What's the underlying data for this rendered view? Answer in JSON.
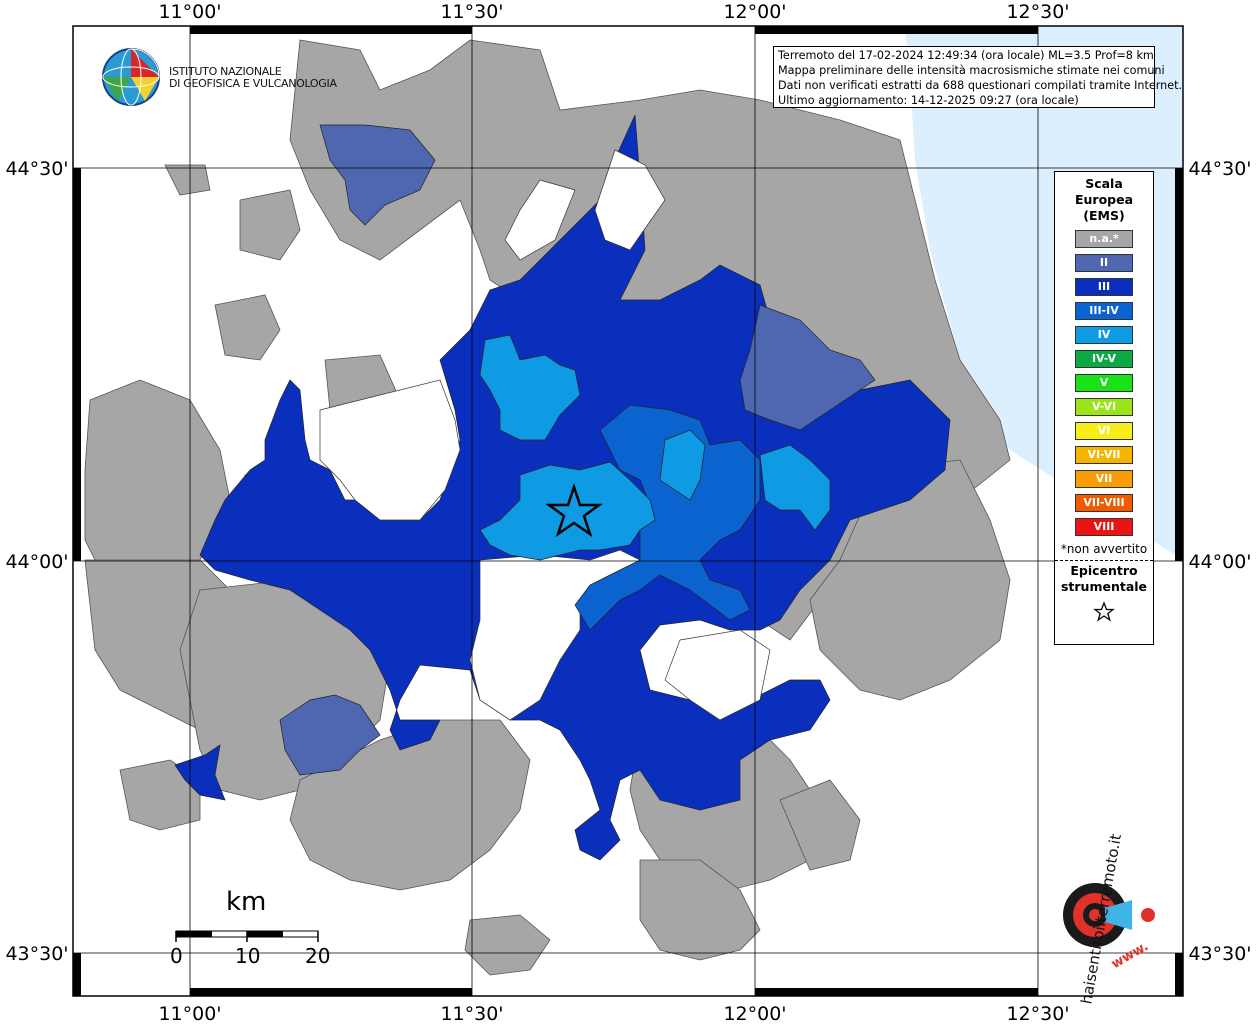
{
  "info": {
    "line1": "Terremoto del 17-02-2024 12:49:34 (ora locale) ML=3.5 Prof=8 km",
    "line2": "Mappa preliminare delle intensità macrosismiche stimate nei comuni",
    "line3": "Dati non verificati estratti da 688 questionari compilati tramite Internet.",
    "line4": "Ultimo aggiornamento: 14-12-2025 09:27 (ora locale)"
  },
  "legend": {
    "title_line1": "Scala",
    "title_line2": "Europea",
    "title_line3": "(EMS)",
    "classes": [
      {
        "label": "n.a.*",
        "color": "#a6a6a6"
      },
      {
        "label": "II",
        "color": "#4f67b0"
      },
      {
        "label": "III",
        "color": "#0b2fbd"
      },
      {
        "label": "III-IV",
        "color": "#0b63cf"
      },
      {
        "label": "IV",
        "color": "#0f9ae4"
      },
      {
        "label": "IV-V",
        "color": "#0aa944"
      },
      {
        "label": "V",
        "color": "#19e219"
      },
      {
        "label": "V-VI",
        "color": "#9be417"
      },
      {
        "label": "VI",
        "color": "#f6ee18"
      },
      {
        "label": "VI-VII",
        "color": "#f4b400"
      },
      {
        "label": "VII",
        "color": "#f79d06"
      },
      {
        "label": "VII-VIII",
        "color": "#f25a00"
      },
      {
        "label": "VIII",
        "color": "#ee1313"
      }
    ],
    "note": "*non avvertito",
    "epicenter_line1": "Epicentro",
    "epicenter_line2": "strumentale",
    "epicenter_icon": "star-outline-icon"
  },
  "axes": {
    "lon_labels": [
      "11°00'",
      "11°30'",
      "12°00'",
      "12°30'"
    ],
    "lat_labels": [
      "44°30'",
      "44°00'",
      "43°30'"
    ]
  },
  "scale_bar": {
    "unit": "km",
    "ticks": [
      "0",
      "10",
      "20"
    ]
  },
  "logos": {
    "ingv_line1": "ISTITUTO NAZIONALE",
    "ingv_line2": "DI GEOFISICA E VULCANOLOGIA",
    "hsit_text": "haisentitoilterremoto.it",
    "hsit_url": "www."
  },
  "colors": {
    "sea": "#dcefff",
    "na": "#a6a6a6",
    "ems2": "#4f67b0",
    "ems3": "#0b2fbd",
    "ems34": "#0b63cf",
    "ems4": "#0f9ae4"
  }
}
